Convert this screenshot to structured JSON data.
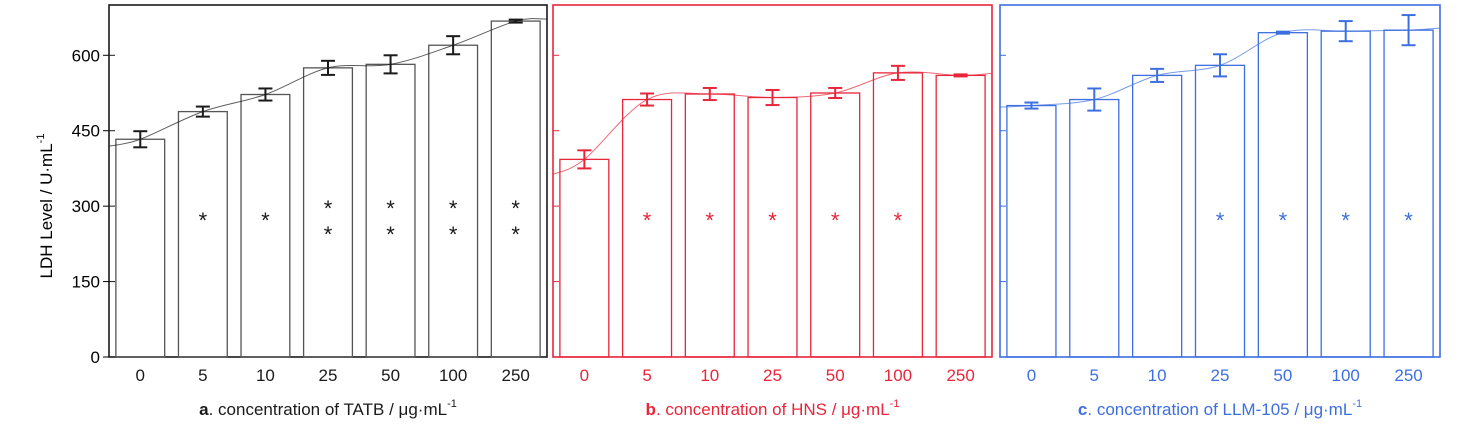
{
  "y_axis": {
    "label_main": "LDH Level / U·mL",
    "label_exp": "-1",
    "ticks": [
      "0",
      "150",
      "300",
      "450",
      "600"
    ]
  },
  "chart_data": [
    {
      "type": "bar",
      "panel": "a",
      "color": "#1a1a1a",
      "bar_color": "#555555",
      "xlabel_letter": "a",
      "xlabel_main": ". concentration of TATB / μg·mL",
      "xlabel_exp": "-1",
      "categories": [
        "0",
        "5",
        "10",
        "25",
        "50",
        "100",
        "250"
      ],
      "values": [
        433,
        488,
        522,
        575,
        582,
        620,
        668
      ],
      "errors": [
        16,
        10,
        12,
        14,
        18,
        18,
        3
      ],
      "significance": [
        "",
        "*",
        "*",
        "**",
        "**",
        "**",
        "**"
      ],
      "ylim": [
        0,
        700
      ],
      "fit_curve": true
    },
    {
      "type": "bar",
      "panel": "b",
      "color": "#e8263b",
      "bar_color": "#e8263b",
      "xlabel_letter": "b",
      "xlabel_main": ". concentration of HNS / μg·mL",
      "xlabel_exp": "-1",
      "categories": [
        "0",
        "5",
        "10",
        "25",
        "50",
        "100",
        "250"
      ],
      "values": [
        393,
        512,
        523,
        516,
        525,
        565,
        560
      ],
      "errors": [
        18,
        12,
        12,
        15,
        10,
        14,
        2
      ],
      "significance": [
        "",
        "*",
        "*",
        "*",
        "*",
        "*",
        ""
      ],
      "ylim": [
        0,
        700
      ],
      "fit_curve": true
    },
    {
      "type": "bar",
      "panel": "c",
      "color": "#3d6fe0",
      "bar_color": "#3d6fe0",
      "xlabel_letter": "c",
      "xlabel_main": ". concentration of LLM-105 / μg·mL",
      "xlabel_exp": "-1",
      "categories": [
        "0",
        "5",
        "10",
        "25",
        "50",
        "100",
        "250"
      ],
      "values": [
        500,
        512,
        560,
        580,
        645,
        648,
        650
      ],
      "errors": [
        6,
        22,
        13,
        22,
        2,
        20,
        30
      ],
      "significance": [
        "",
        "",
        "",
        "*",
        "*",
        "*",
        "*"
      ],
      "ylim": [
        0,
        700
      ],
      "fit_curve": true
    }
  ]
}
